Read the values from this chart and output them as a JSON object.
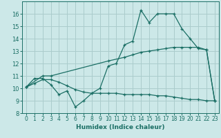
{
  "xlabel": "Humidex (Indice chaleur)",
  "xlim": [
    -0.5,
    23.5
  ],
  "ylim": [
    8,
    17
  ],
  "xticks": [
    0,
    1,
    2,
    3,
    4,
    5,
    6,
    7,
    8,
    9,
    10,
    11,
    12,
    13,
    14,
    15,
    16,
    17,
    18,
    19,
    20,
    21,
    22,
    23
  ],
  "yticks": [
    8,
    9,
    10,
    11,
    12,
    13,
    14,
    15,
    16
  ],
  "bg_color": "#cce8e8",
  "grid_color": "#aacccc",
  "line_color": "#1a6e64",
  "line1_x": [
    0,
    1,
    2,
    3,
    4,
    5,
    6,
    7,
    8,
    9,
    10,
    11,
    12,
    13,
    14,
    15,
    16,
    17,
    18,
    19,
    20,
    21,
    22,
    23
  ],
  "line1_y": [
    10.1,
    10.8,
    10.8,
    10.3,
    9.5,
    9.8,
    8.5,
    9.0,
    9.6,
    10.0,
    11.8,
    12.0,
    13.5,
    13.8,
    16.3,
    15.3,
    16.0,
    16.0,
    16.0,
    14.8,
    14.0,
    13.2,
    13.1,
    9.0
  ],
  "line2_x": [
    0,
    2,
    3,
    10,
    12,
    13,
    14,
    15,
    16,
    17,
    18,
    19,
    20,
    21,
    22,
    23
  ],
  "line2_y": [
    10.1,
    11.0,
    11.0,
    12.2,
    12.5,
    12.7,
    12.9,
    13.0,
    13.1,
    13.2,
    13.3,
    13.3,
    13.3,
    13.3,
    13.1,
    9.0
  ],
  "line3_x": [
    0,
    1,
    2,
    3,
    4,
    5,
    6,
    7,
    8,
    9,
    10,
    11,
    12,
    13,
    14,
    15,
    16,
    17,
    18,
    19,
    20,
    21,
    22,
    23
  ],
  "line3_y": [
    10.1,
    10.4,
    10.7,
    10.7,
    10.5,
    10.2,
    9.9,
    9.7,
    9.6,
    9.6,
    9.6,
    9.6,
    9.5,
    9.5,
    9.5,
    9.5,
    9.4,
    9.4,
    9.3,
    9.2,
    9.1,
    9.1,
    9.0,
    9.0
  ]
}
